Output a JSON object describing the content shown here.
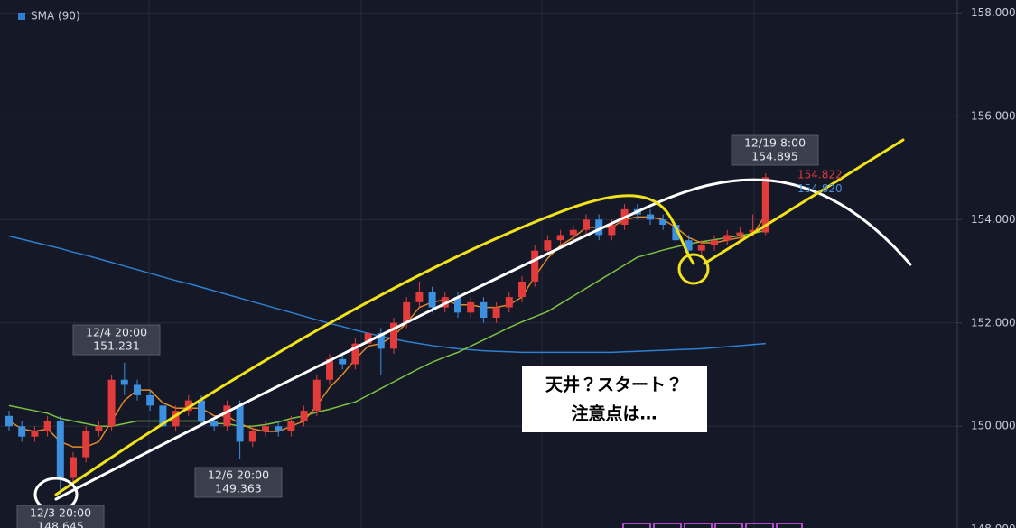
{
  "chart_data": {
    "type": "candlestick",
    "categories": [
      null,
      null,
      null,
      null,
      null,
      null,
      null,
      null,
      null,
      null,
      null,
      null,
      null,
      null,
      null,
      null,
      null,
      null,
      null,
      null,
      null,
      null,
      null,
      null,
      null,
      null,
      null,
      null,
      null,
      null,
      null,
      null,
      null,
      null,
      null,
      null,
      null,
      null,
      null,
      null,
      null,
      null,
      null,
      null,
      null,
      null,
      null,
      null,
      null,
      null,
      null,
      null,
      null,
      null,
      null,
      null,
      null,
      null,
      null,
      null
    ],
    "open": [
      150.2,
      150.0,
      149.8,
      149.9,
      150.1,
      149.0,
      149.4,
      149.9,
      150.0,
      150.9,
      150.8,
      150.6,
      150.4,
      150.0,
      150.3,
      150.5,
      150.1,
      150.0,
      150.4,
      149.7,
      149.9,
      150.0,
      149.9,
      150.1,
      150.3,
      150.9,
      151.3,
      151.2,
      151.6,
      151.8,
      151.5,
      152.0,
      152.4,
      152.6,
      152.3,
      152.5,
      152.2,
      152.4,
      152.1,
      152.3,
      152.5,
      152.8,
      153.4,
      153.6,
      153.7,
      153.8,
      154.0,
      153.7,
      153.9,
      154.2,
      154.1,
      154.0,
      153.9,
      153.6,
      153.4,
      153.5,
      153.6,
      153.7,
      153.75,
      153.75
    ],
    "high": [
      150.3,
      150.1,
      150.0,
      150.2,
      150.2,
      149.5,
      150.0,
      150.1,
      151.0,
      151.231,
      150.9,
      150.7,
      150.5,
      150.4,
      150.6,
      150.6,
      150.2,
      150.5,
      150.5,
      150.0,
      150.1,
      150.1,
      150.2,
      150.4,
      151.0,
      151.4,
      151.4,
      151.7,
      151.9,
      151.9,
      152.1,
      152.5,
      152.8,
      152.7,
      152.6,
      152.6,
      152.5,
      152.5,
      152.4,
      152.6,
      152.9,
      153.5,
      153.7,
      153.8,
      153.9,
      154.1,
      154.1,
      154.0,
      154.3,
      154.3,
      154.2,
      154.1,
      154.0,
      153.7,
      153.6,
      153.7,
      153.8,
      153.85,
      154.1,
      154.895
    ],
    "low": [
      149.9,
      149.7,
      149.7,
      149.8,
      148.645,
      148.9,
      149.3,
      149.8,
      149.9,
      150.6,
      150.5,
      150.3,
      149.9,
      149.9,
      150.2,
      150.0,
      149.9,
      149.9,
      149.363,
      149.6,
      149.8,
      149.8,
      149.8,
      150.0,
      150.2,
      150.8,
      151.1,
      151.1,
      151.5,
      151.0,
      151.4,
      151.9,
      152.3,
      152.2,
      152.2,
      152.1,
      152.1,
      152.0,
      152.0,
      152.2,
      152.4,
      152.7,
      153.3,
      153.5,
      153.6,
      153.7,
      153.6,
      153.6,
      153.8,
      154.0,
      153.9,
      153.8,
      153.5,
      153.3,
      153.3,
      153.4,
      153.5,
      153.6,
      153.7,
      153.7
    ],
    "close": [
      150.0,
      149.8,
      149.9,
      150.1,
      149.0,
      149.4,
      149.9,
      150.0,
      150.9,
      150.8,
      150.6,
      150.4,
      150.0,
      150.3,
      150.5,
      150.1,
      150.0,
      150.4,
      149.7,
      149.9,
      150.0,
      149.9,
      150.1,
      150.3,
      150.9,
      151.3,
      151.2,
      151.6,
      151.8,
      151.5,
      152.0,
      152.4,
      152.6,
      152.3,
      152.5,
      152.2,
      152.4,
      152.1,
      152.3,
      152.5,
      152.8,
      153.4,
      153.6,
      153.7,
      153.8,
      154.0,
      153.7,
      153.9,
      154.2,
      154.1,
      154.0,
      153.9,
      153.6,
      153.4,
      153.5,
      153.6,
      153.7,
      153.75,
      153.8,
      154.82
    ],
    "up_color": "#e23b3b",
    "down_color": "#3d8fe0",
    "series": [
      {
        "name": "SMA (90)",
        "color": "#2f7fd0",
        "values": [
          153.68,
          153.62,
          153.56,
          153.5,
          153.44,
          153.37,
          153.31,
          153.24,
          153.17,
          153.1,
          153.03,
          152.96,
          152.89,
          152.82,
          152.76,
          152.69,
          152.62,
          152.55,
          152.48,
          152.41,
          152.34,
          152.27,
          152.2,
          152.13,
          152.06,
          151.99,
          151.93,
          151.86,
          151.8,
          151.74,
          151.69,
          151.64,
          151.6,
          151.56,
          151.53,
          151.5,
          151.48,
          151.46,
          151.45,
          151.44,
          151.43,
          151.43,
          151.43,
          151.43,
          151.43,
          151.43,
          151.43,
          151.43,
          151.44,
          151.45,
          151.46,
          151.47,
          151.48,
          151.49,
          151.5,
          151.52,
          151.54,
          151.56,
          151.58,
          151.6
        ]
      },
      {
        "color": "#7fc241",
        "values": [
          150.4,
          150.35,
          150.3,
          150.25,
          150.15,
          150.1,
          150.05,
          150.0,
          150.0,
          150.05,
          150.1,
          150.1,
          150.1,
          150.1,
          150.1,
          150.1,
          150.05,
          150.05,
          150.0,
          150.0,
          150.03,
          150.08,
          150.15,
          150.2,
          150.27,
          150.33,
          150.4,
          150.47,
          150.6,
          150.73,
          150.86,
          150.99,
          151.12,
          151.24,
          151.34,
          151.43,
          151.55,
          151.67,
          151.79,
          151.91,
          152.02,
          152.12,
          152.22,
          152.37,
          152.52,
          152.67,
          152.82,
          152.97,
          153.12,
          153.27,
          153.34,
          153.41,
          153.47,
          153.53,
          153.57,
          153.61,
          153.65,
          153.69,
          153.73,
          153.79
        ]
      },
      {
        "color": "#e08a2a",
        "values": [
          150.1,
          149.95,
          149.9,
          149.95,
          149.7,
          149.6,
          149.6,
          149.7,
          150.1,
          150.5,
          150.7,
          150.7,
          150.45,
          150.35,
          150.35,
          150.35,
          150.2,
          150.2,
          150.05,
          149.95,
          149.9,
          149.9,
          150.0,
          150.1,
          150.4,
          150.75,
          151.0,
          151.3,
          151.55,
          151.6,
          151.75,
          152.0,
          152.3,
          152.4,
          152.45,
          152.35,
          152.35,
          152.3,
          152.3,
          152.35,
          152.5,
          152.9,
          153.25,
          153.5,
          153.65,
          153.85,
          153.85,
          153.85,
          154.0,
          154.05,
          154.05,
          154.0,
          153.85,
          153.65,
          153.55,
          153.55,
          153.6,
          153.65,
          153.7,
          154.1
        ]
      }
    ],
    "ylim": [
      148.03,
      158.25
    ],
    "yticks": [
      {
        "value": 148,
        "label": "148.000"
      },
      {
        "value": 150,
        "label": "150.000"
      },
      {
        "value": 152,
        "label": "152.000"
      },
      {
        "value": 154,
        "label": "154.000"
      },
      {
        "value": 156,
        "label": "156.000"
      },
      {
        "value": 158,
        "label": "158.000"
      }
    ],
    "grid": true,
    "legend": "top-left",
    "callouts": [
      {
        "time": "12/3 20:00",
        "value": 148.645
      },
      {
        "time": "12/4 20:00",
        "value": 151.231
      },
      {
        "time": "12/6 20:00",
        "value": 149.363
      },
      {
        "time": "12/19 8:00",
        "value": 154.895
      }
    ],
    "price_labels": [
      {
        "value": 154.822,
        "color": "#e23b3b"
      },
      {
        "value": {
          "value": 154.82,
          "label": "154.820"
        },
        "color": "#4a8fd6"
      }
    ],
    "note": [
      "天井？スタート？",
      "注意点は…"
    ]
  }
}
